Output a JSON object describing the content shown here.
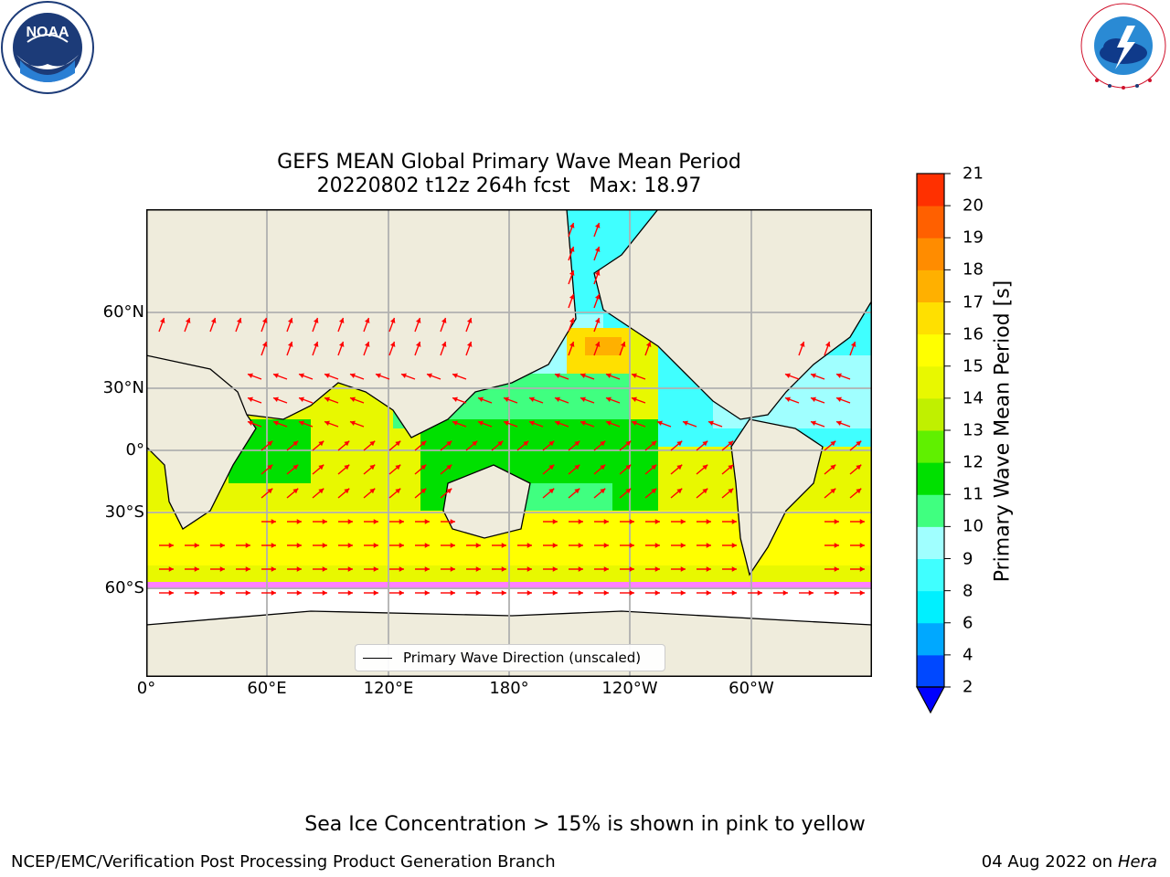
{
  "title_line1": "GEFS MEAN Global Primary Wave Mean Period",
  "title_line2": "20220802 t12z 264h fcst   Max: 18.97",
  "lat_labels": [
    "60°N",
    "30°N",
    "0°",
    "30°S",
    "60°S"
  ],
  "lon_labels": [
    "0°",
    "60°E",
    "120°E",
    "180°",
    "120°W",
    "60°W"
  ],
  "legend_label": "Primary Wave Direction (unscaled)",
  "colorbar": {
    "title": "Primary Wave Mean Period [s]",
    "ticks": [
      "2",
      "4",
      "6",
      "8",
      "9",
      "10",
      "11",
      "12",
      "13",
      "14",
      "15",
      "16",
      "17",
      "18",
      "19",
      "20",
      "21"
    ],
    "colors": [
      "#0048ff",
      "#00a8ff",
      "#00f0ff",
      "#40ffff",
      "#a0ffff",
      "#40ff80",
      "#00e000",
      "#60f000",
      "#c0f000",
      "#e8f800",
      "#ffff00",
      "#ffe000",
      "#ffb000",
      "#ff8c00",
      "#ff6000",
      "#ff3000",
      "#ff0000"
    ],
    "under_color": "#0000ff"
  },
  "footer_note": "Sea Ice Concentration > 15% is shown in pink to yellow",
  "footer_left": "NCEP/EMC/Verification Post Processing Product Generation Branch",
  "footer_date": "04 Aug 2022 on",
  "footer_host": "Hera",
  "logos": {
    "left": "noaa-logo",
    "right": "national-weather-service-logo",
    "left_text": "NOAA",
    "left_ring_text": "NATIONAL OCEANIC AND ATMOSPHERIC ADMINISTRATION · U.S. DEPARTMENT OF COMMERCE",
    "right_ring_text": "NATIONAL WEATHER SERVICE"
  },
  "map_colors": {
    "land": "#efecdc",
    "ice": "#ffffff",
    "arrow": "#ff0000",
    "grid": "#b0b0b0"
  }
}
